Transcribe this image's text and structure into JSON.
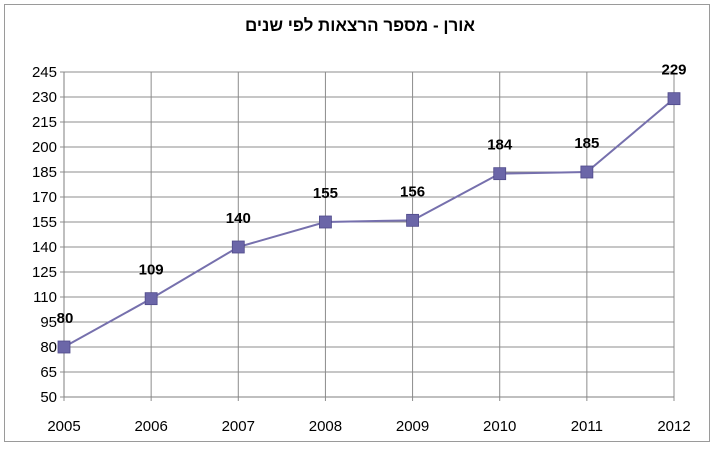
{
  "chart_data": {
    "type": "line",
    "title": "אורן - מספר הרצאות לפי שנים",
    "categories": [
      "2005",
      "2006",
      "2007",
      "2008",
      "2009",
      "2010",
      "2011",
      "2012"
    ],
    "series": [
      {
        "values": [
          80,
          109,
          140,
          155,
          156,
          184,
          185,
          229
        ]
      }
    ],
    "data_labels": [
      "80",
      "109",
      "140",
      "155",
      "156",
      "184",
      "185",
      "229"
    ],
    "ylim": [
      50,
      245
    ],
    "yticks": [
      "50",
      "65",
      "80",
      "95",
      "110",
      "125",
      "140",
      "155",
      "170",
      "185",
      "200",
      "215",
      "230",
      "245"
    ],
    "grid": true,
    "legend": "none",
    "colors": {
      "line": "#7670ad",
      "marker": "#6b66a8",
      "grid": "#8c8c8c"
    }
  }
}
